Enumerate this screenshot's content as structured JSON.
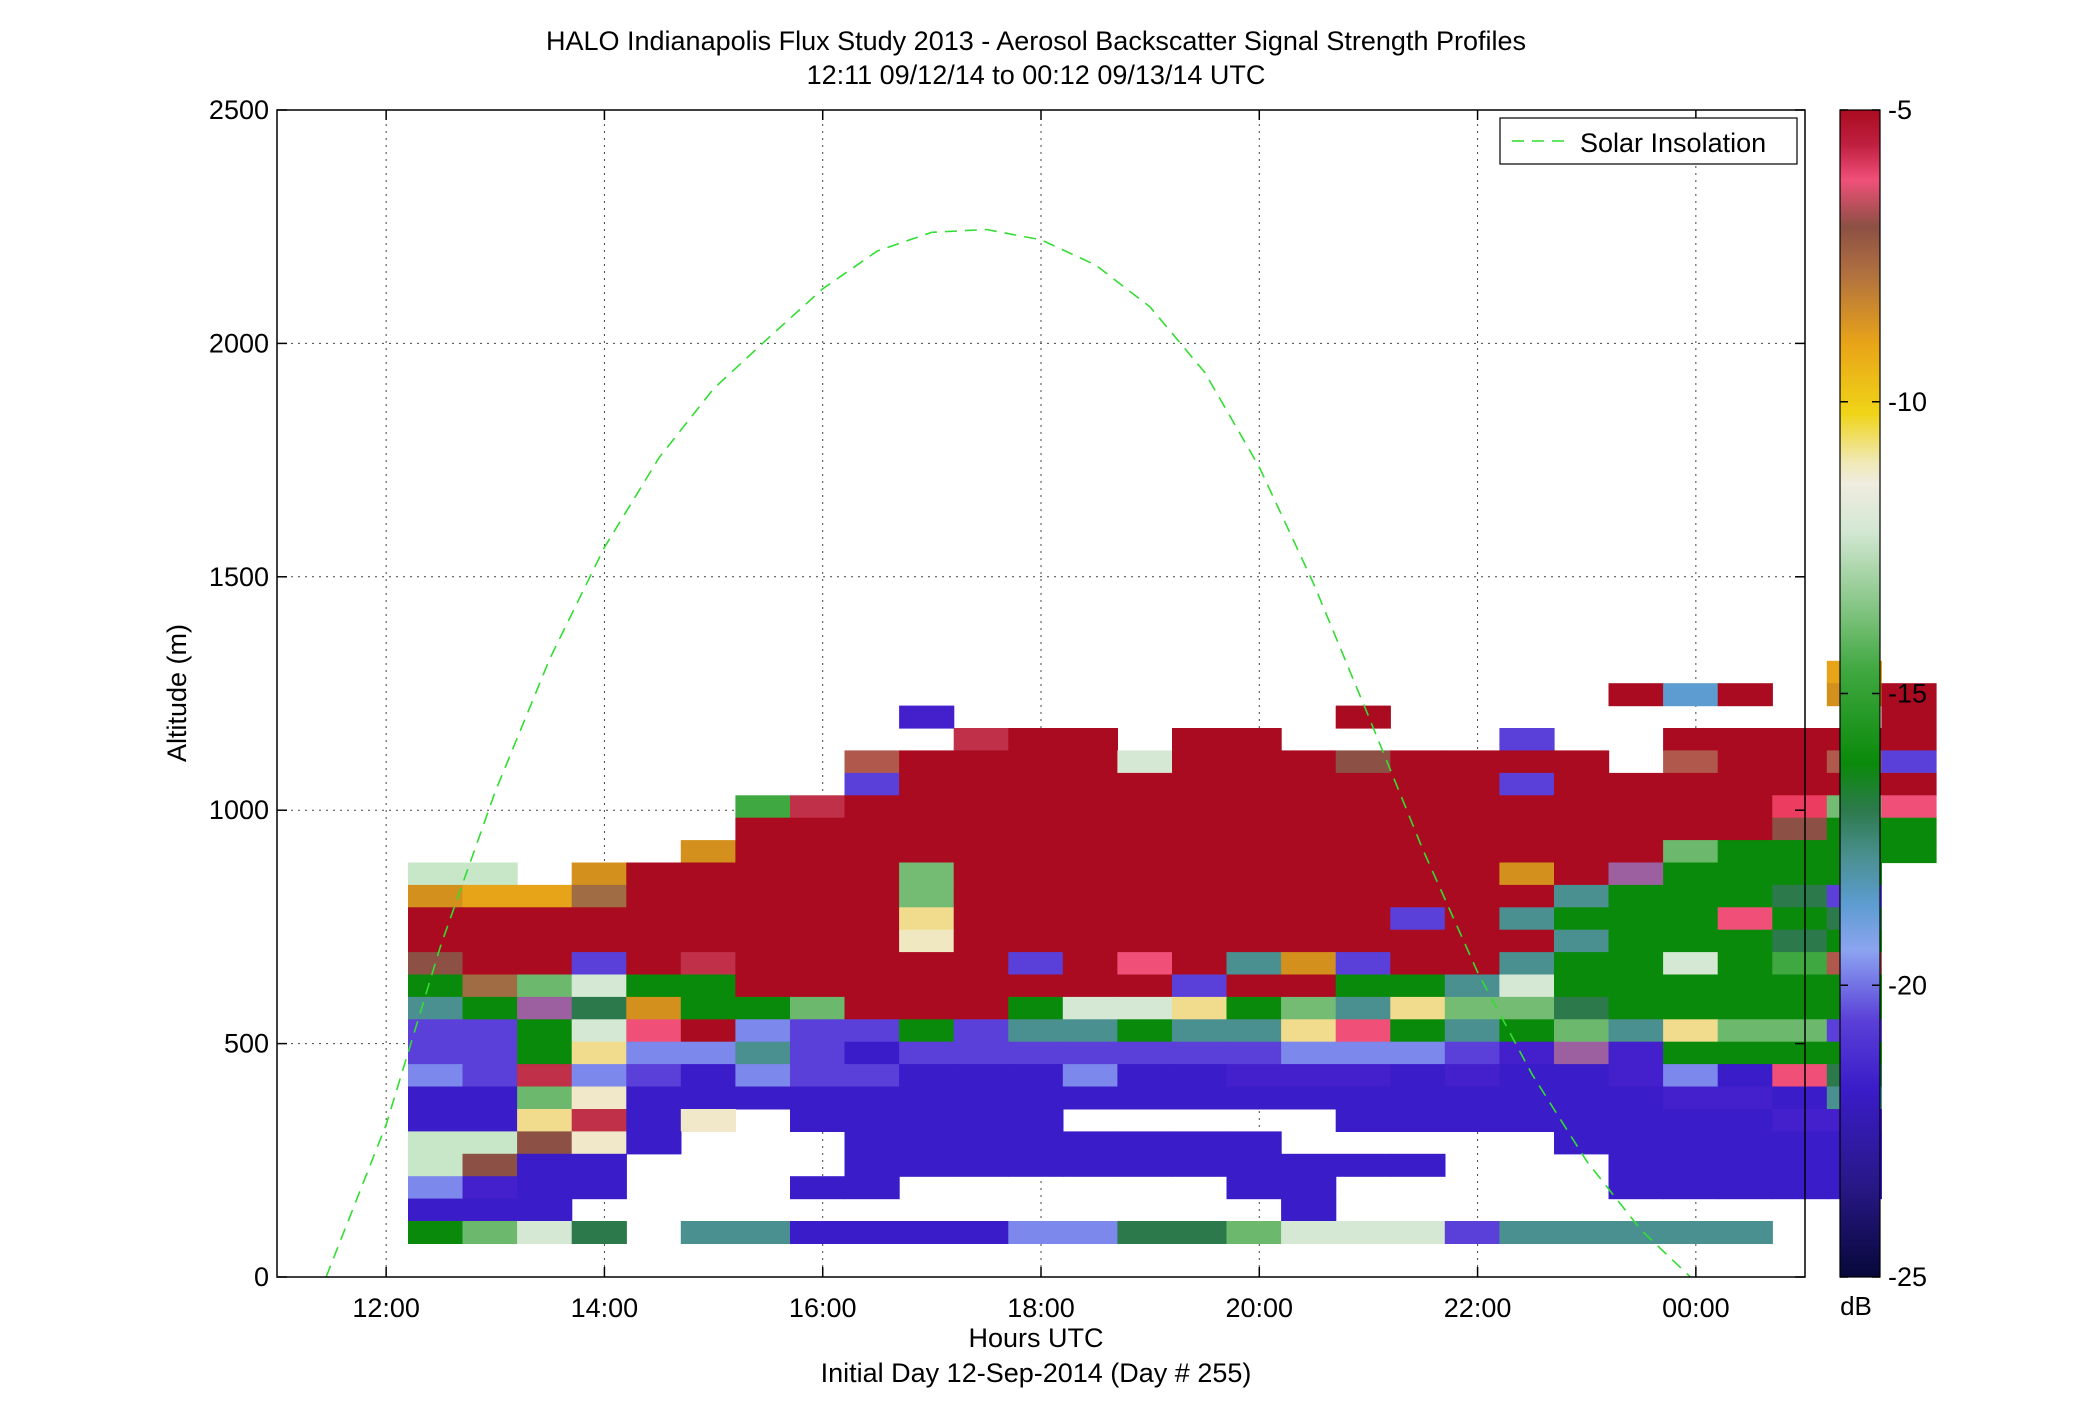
{
  "chart_data": {
    "type": "heatmap",
    "title": "HALO Indianapolis Flux Study 2013 - Aerosol Backscatter Signal Strength Profiles",
    "subtitle": "12:11 09/12/14 to 00:12 09/13/14  UTC",
    "xlabel": "Hours UTC",
    "xlabel2": "Initial Day 12-Sep-2014 (Day # 255)",
    "ylabel": "Altitude (m)",
    "x_axis": {
      "min": 11.0,
      "max": 25.0,
      "ticks": [
        12,
        14,
        16,
        18,
        20,
        22,
        24
      ],
      "tick_labels": [
        "12:00",
        "14:00",
        "16:00",
        "18:00",
        "20:00",
        "22:00",
        "00:00"
      ]
    },
    "y_axis": {
      "min": 0,
      "max": 2500,
      "ticks": [
        0,
        500,
        1000,
        1500,
        2000,
        2500
      ],
      "tick_labels": [
        "0",
        "500",
        "1000",
        "1500",
        "2000",
        "2500"
      ]
    },
    "grid": true,
    "colorbar": {
      "min": -25,
      "max": -5,
      "unit": "dB",
      "ticks": [
        -25,
        -20,
        -15,
        -10,
        -5
      ],
      "tick_labels": [
        "-25",
        "-20",
        "-15",
        "-10",
        "-5"
      ]
    },
    "legend": {
      "position": "top-right",
      "entries": [
        "Solar Insolation"
      ]
    },
    "heatmap": {
      "x_start": 12.2,
      "x_step": 0.5,
      "y_step": 48,
      "row_altitudes": [
        1272,
        1224,
        1176,
        1128,
        1080,
        1032,
        984,
        936,
        888,
        840,
        792,
        744,
        696,
        648,
        600,
        552,
        504,
        456,
        408,
        360,
        312,
        264,
        216,
        168,
        120,
        72
      ],
      "rows": [
        "..........................0",
        "......................KWK.DK",
        ".........Y.......K.........K",
        "..........GKK.KK....U..KKKKK",
        "........HKKKKRKKKBKKKK.HKKHU",
        "........UKKKKKKKKKKKUKKKKKKK",
        "......IGKKKKKKKKKKKKKKKKKLNO",
        "......KKKKKKKKKKKKKKKKKKKBPP",
        ".....DKKKKKKKKKKKKKKKKKQPPPP",
        "AA.DKKKKKNKKKKKKKKKKDKXPPPP",
        "DFFEKKKKKNKKKKKKKKKKKTPPPSU",
        "KKKKKKKKKMKKKKKKKKUKTPPPOPS",
        "KKKKKKKKKCKKKKKKKKKKKTPPPSP",
        "BKKUKGKKKKKUKOKTDUKKTPPRPIH",
        "PEQRPPKKKKKKKKUKKPPTRPPPPPP",
        "TPXSDPPQKKKPRRMPNTMNNSPPPPP",
        "UUPROKVUUPUTTPTTMOPTPQTMQQU",
        "UUPMVVTUZUUUUUUUVVVUYXYPPPP",
        "VUGVUZVUUZZZVZZYYYZYZZYVZOS",
        "ZZQJZZZZZZZZZZZZZZZZZZZYYZT",
        "ZZMGZJ.ZZZZZ.....ZZZZZZZZYY",
        "AABJZ...ZZZZZZZZ.....ZZZZZZ",
        "ABZZ....ZZZZZZZZZZZ...ZZZZZ",
        "VYZZ...ZZ......ZZ.....ZZZZZ",
        "ZZZ.............Z..........",
        "PQRS.TTZZZZVVSSQRRRUTTTTT.."
      ],
      "palette": {
        "A": "#c8e6c8",
        "B": "#8c5044",
        "C": "#f0e8c0",
        "D": "#d4901c",
        "E": "#a06c44",
        "F": "#e8a418",
        "G": "#c03048",
        "H": "#b0584c",
        "I": "#40a840",
        "J": "#f0e8c8",
        "K": "#aa0b20",
        "L": "#ec3c60",
        "M": "#f0dc8c",
        "N": "#74bc74",
        "O": "#f05078",
        "P": "#0a8a0a",
        "Q": "#6cb86c",
        "R": "#d4e8d4",
        "S": "#2c7a4c",
        "T": "#4a9090",
        "U": "#5a40d8",
        "V": "#7c88ec",
        "W": "#5c9cd0",
        "X": "#9c60a0",
        "Y": "#4420cc",
        "Z": "#3a1cc8",
        "0": "#e8a418"
      }
    },
    "solar_insolation_curve": {
      "x": [
        11.45,
        12.0,
        12.5,
        13.0,
        13.5,
        14.0,
        14.5,
        15.0,
        15.5,
        16.0,
        16.5,
        17.0,
        17.5,
        18.0,
        18.5,
        19.0,
        19.5,
        20.0,
        20.5,
        21.0,
        21.5,
        22.0,
        22.5,
        23.0,
        23.5,
        23.95
      ],
      "y": [
        0,
        326,
        710,
        1040,
        1325,
        1563,
        1755,
        1903,
        2011,
        2117,
        2198,
        2238,
        2244,
        2222,
        2168,
        2078,
        1938,
        1735,
        1484,
        1202,
        915,
        653,
        434,
        248,
        100,
        0
      ]
    }
  },
  "legend": {
    "line_label": "Solar Insolation"
  }
}
